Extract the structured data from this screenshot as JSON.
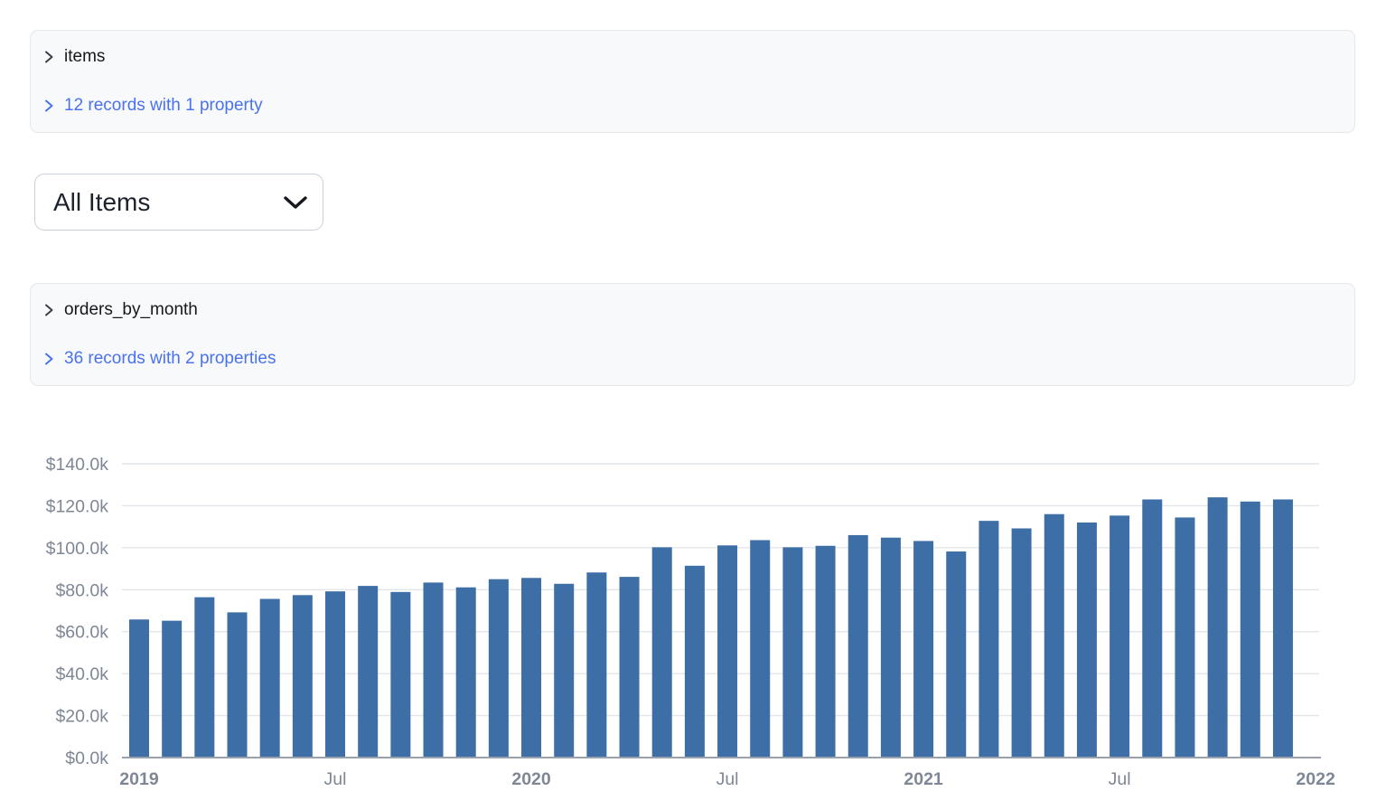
{
  "colors": {
    "bar": "#3d6ea6",
    "link": "#4a72ef",
    "axis_label": "#7e8795",
    "grid": "#e2e5ea",
    "axis_line": "#99a1ac",
    "panel_bg": "#f8f9fa",
    "panel_border": "#e5e7ea"
  },
  "panels": [
    {
      "name": "items",
      "summary": "12 records with 1 property"
    },
    {
      "name": "orders_by_month",
      "summary": "36 records with 2 properties"
    }
  ],
  "select": {
    "value": "All Items",
    "options": [
      "All Items"
    ]
  },
  "chart_data": {
    "type": "bar",
    "title": "",
    "xlabel": "",
    "ylabel": "",
    "grid": true,
    "legend": false,
    "ylim": [
      0,
      140000
    ],
    "y_ticks": [
      "$0.0k",
      "$20.0k",
      "$40.0k",
      "$60.0k",
      "$80.0k",
      "$100.0k",
      "$120.0k",
      "$140.0k"
    ],
    "x_ticks": [
      {
        "label": "2019",
        "month_index": 0
      },
      {
        "label": "Jul",
        "month_index": 6
      },
      {
        "label": "2020",
        "month_index": 12
      },
      {
        "label": "Jul",
        "month_index": 18
      },
      {
        "label": "2021",
        "month_index": 24
      },
      {
        "label": "Jul",
        "month_index": 30
      },
      {
        "label": "2022",
        "month_index": 36
      }
    ],
    "x_months": [
      "2019-01",
      "2019-02",
      "2019-03",
      "2019-04",
      "2019-05",
      "2019-06",
      "2019-07",
      "2019-08",
      "2019-09",
      "2019-10",
      "2019-11",
      "2019-12",
      "2020-01",
      "2020-02",
      "2020-03",
      "2020-04",
      "2020-05",
      "2020-06",
      "2020-07",
      "2020-08",
      "2020-09",
      "2020-10",
      "2020-11",
      "2020-12",
      "2021-01",
      "2021-02",
      "2021-03",
      "2021-04",
      "2021-05",
      "2021-06",
      "2021-07",
      "2021-08",
      "2021-09",
      "2021-10",
      "2021-11",
      "2021-12"
    ],
    "values_usd": [
      65800,
      65200,
      76400,
      69200,
      75600,
      77400,
      79200,
      81800,
      78900,
      83400,
      81100,
      85000,
      85600,
      82800,
      88200,
      86100,
      100200,
      91400,
      101100,
      103600,
      100200,
      100900,
      106000,
      104800,
      103200,
      98200,
      112800,
      109200,
      116000,
      112000,
      115300,
      123000,
      114400,
      124000,
      122000,
      123000
    ]
  }
}
